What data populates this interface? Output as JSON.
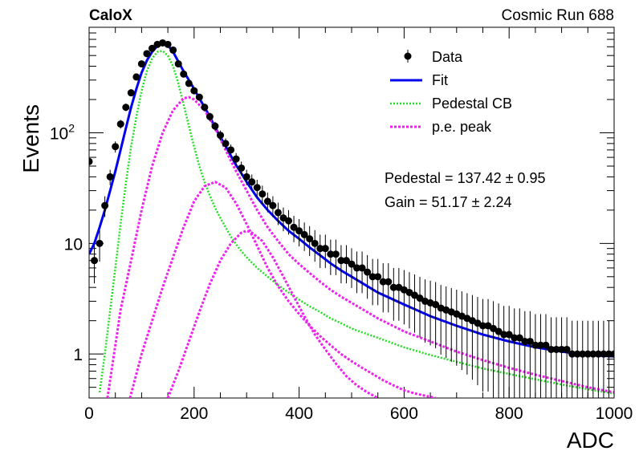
{
  "header": {
    "experiment": "CaloX",
    "run": "Cosmic Run 688"
  },
  "annotations": {
    "pedestal": "Pedestal = 137.42 ± 0.95",
    "gain": "Gain = 51.17 ± 2.24"
  },
  "colors": {
    "data": "#000000",
    "fit": "#0000ee",
    "pedestal": "#22dd22",
    "pe": "#ee22ee"
  },
  "chart_data": {
    "type": "scatter",
    "xlabel": "ADC",
    "ylabel": "Events",
    "xlim": [
      0,
      1000
    ],
    "ylim": [
      0.4,
      900
    ],
    "yscale": "log",
    "grid": false,
    "legend_position": "top-right",
    "x_ticks": [
      "0",
      "200",
      "400",
      "600",
      "800",
      "1000"
    ],
    "y_ticks": [
      {
        "value": 1,
        "label": "1"
      },
      {
        "value": 10,
        "label": "10"
      },
      {
        "value": 100,
        "label": "10",
        "sup": "2"
      }
    ],
    "legend": [
      "Data",
      "Fit",
      "Pedestal CB",
      "p.e. peak"
    ],
    "series": [
      {
        "name": "Data",
        "style": "points-with-errors",
        "x": [
          0,
          10,
          20,
          30,
          40,
          50,
          60,
          70,
          80,
          90,
          100,
          110,
          120,
          130,
          140,
          150,
          160,
          170,
          180,
          190,
          200,
          210,
          220,
          230,
          240,
          250,
          260,
          270,
          280,
          290,
          300,
          310,
          320,
          330,
          340,
          350,
          360,
          370,
          380,
          390,
          400,
          410,
          420,
          430,
          440,
          450,
          460,
          470,
          480,
          490,
          500,
          510,
          520,
          530,
          540,
          550,
          560,
          570,
          580,
          590,
          600,
          610,
          620,
          630,
          640,
          650,
          660,
          670,
          680,
          690,
          700,
          710,
          720,
          730,
          740,
          750,
          760,
          770,
          780,
          790,
          800,
          810,
          820,
          830,
          840,
          850,
          860,
          870,
          880,
          890,
          900,
          910,
          920,
          930,
          940,
          950,
          960,
          970,
          980,
          990,
          1000
        ],
        "y": [
          55,
          7,
          10,
          22,
          40,
          75,
          120,
          170,
          230,
          320,
          420,
          520,
          580,
          630,
          650,
          630,
          560,
          420,
          340,
          280,
          240,
          210,
          170,
          140,
          115,
          95,
          80,
          70,
          58,
          48,
          40,
          36,
          32,
          28,
          24,
          22,
          19,
          17,
          16,
          14,
          13,
          12,
          11,
          10,
          9,
          9,
          8,
          8,
          7,
          7,
          6.5,
          6,
          6,
          5.5,
          5,
          5,
          4.5,
          4.5,
          4,
          4,
          3.8,
          3.6,
          3.4,
          3.2,
          3,
          2.9,
          2.8,
          2.6,
          2.5,
          2.4,
          2.3,
          2.2,
          2.1,
          2,
          1.9,
          1.8,
          1.8,
          1.7,
          1.6,
          1.5,
          1.5,
          1.4,
          1.4,
          1.3,
          1.3,
          1.2,
          1.2,
          1.2,
          1.1,
          1.1,
          1.1,
          1.1,
          1,
          1,
          1,
          1,
          1,
          1,
          1,
          1,
          1
        ]
      },
      {
        "name": "Fit",
        "style": "solid",
        "x": [
          0,
          10,
          20,
          30,
          40,
          50,
          60,
          70,
          80,
          90,
          100,
          110,
          120,
          130,
          140,
          150,
          160,
          170,
          180,
          190,
          200,
          210,
          220,
          230,
          240,
          250,
          260,
          270,
          280,
          290,
          300,
          320,
          340,
          360,
          380,
          400,
          420,
          440,
          460,
          480,
          500,
          550,
          600,
          650,
          700,
          750,
          800,
          850,
          900,
          950,
          1000
        ],
        "y": [
          8,
          10,
          14,
          20,
          30,
          45,
          70,
          110,
          170,
          250,
          350,
          450,
          540,
          610,
          640,
          620,
          540,
          440,
          360,
          300,
          250,
          205,
          170,
          140,
          112,
          92,
          76,
          62,
          51,
          43,
          36,
          26,
          20,
          16,
          13,
          11,
          9.2,
          7.8,
          6.6,
          5.7,
          5,
          3.6,
          2.8,
          2.2,
          1.8,
          1.5,
          1.3,
          1.15,
          1.05,
          0.98,
          0.95
        ]
      },
      {
        "name": "Pedestal CB",
        "style": "dotted",
        "x": [
          20,
          30,
          40,
          50,
          60,
          70,
          80,
          90,
          100,
          110,
          120,
          130,
          140,
          150,
          160,
          170,
          180,
          190,
          200,
          210,
          220,
          230,
          240,
          250,
          260,
          270,
          280,
          290,
          300,
          320,
          340,
          360,
          380,
          400,
          420,
          440,
          460,
          480,
          500,
          550,
          600,
          650,
          700,
          750,
          800,
          850,
          900,
          950,
          1000
        ],
        "y": [
          0.45,
          1,
          2.5,
          6,
          15,
          35,
          75,
          140,
          240,
          360,
          470,
          540,
          550,
          500,
          400,
          280,
          180,
          115,
          75,
          50,
          36,
          27,
          21,
          17,
          14,
          11.5,
          9.8,
          8.5,
          7.5,
          6,
          5,
          4.2,
          3.6,
          3.1,
          2.7,
          2.4,
          2.1,
          1.9,
          1.7,
          1.4,
          1.15,
          0.98,
          0.85,
          0.74,
          0.66,
          0.59,
          0.53,
          0.48,
          0.44
        ]
      },
      {
        "name": "p.e. peak 1",
        "style": "dotted",
        "x": [
          35,
          60,
          80,
          100,
          120,
          140,
          160,
          180,
          190,
          200,
          220,
          240,
          260,
          280,
          300,
          320,
          340,
          360,
          380,
          400,
          420,
          440,
          460,
          480,
          500,
          550,
          600,
          650,
          700,
          750,
          800,
          850,
          900,
          950,
          1000
        ],
        "y": [
          0.4,
          2.5,
          7,
          20,
          50,
          100,
          160,
          205,
          210,
          200,
          160,
          110,
          70,
          45,
          30,
          20,
          14,
          10.5,
          8,
          6.5,
          5.4,
          4.5,
          3.8,
          3.3,
          2.9,
          2.1,
          1.6,
          1.3,
          1.05,
          0.88,
          0.75,
          0.65,
          0.57,
          0.5,
          0.45
        ]
      },
      {
        "name": "p.e. peak 2",
        "style": "dotted",
        "x": [
          78,
          100,
          120,
          140,
          160,
          180,
          200,
          220,
          240,
          260,
          280,
          300,
          320,
          340,
          360,
          380,
          400,
          420,
          440,
          460,
          480,
          500,
          520,
          540,
          560,
          580,
          600,
          620,
          640,
          660
        ],
        "y": [
          0.4,
          1,
          2,
          4,
          7.5,
          14,
          24,
          33,
          36,
          32,
          23,
          15,
          9.5,
          6,
          4.1,
          3,
          2.3,
          1.8,
          1.45,
          1.2,
          1,
          0.86,
          0.75,
          0.66,
          0.58,
          0.52,
          0.47,
          0.44,
          0.42,
          0.4
        ]
      },
      {
        "name": "p.e. peak 3",
        "style": "dotted",
        "x": [
          150,
          170,
          190,
          210,
          230,
          250,
          270,
          290,
          300,
          310,
          330,
          350,
          370,
          390,
          410,
          430,
          450,
          470,
          490,
          510,
          530,
          550
        ],
        "y": [
          0.4,
          0.7,
          1.3,
          2.4,
          4.3,
          7,
          10,
          12.5,
          13,
          12.5,
          10.5,
          7.5,
          5,
          3.3,
          2.2,
          1.5,
          1.1,
          0.82,
          0.63,
          0.52,
          0.45,
          0.4
        ]
      }
    ]
  }
}
